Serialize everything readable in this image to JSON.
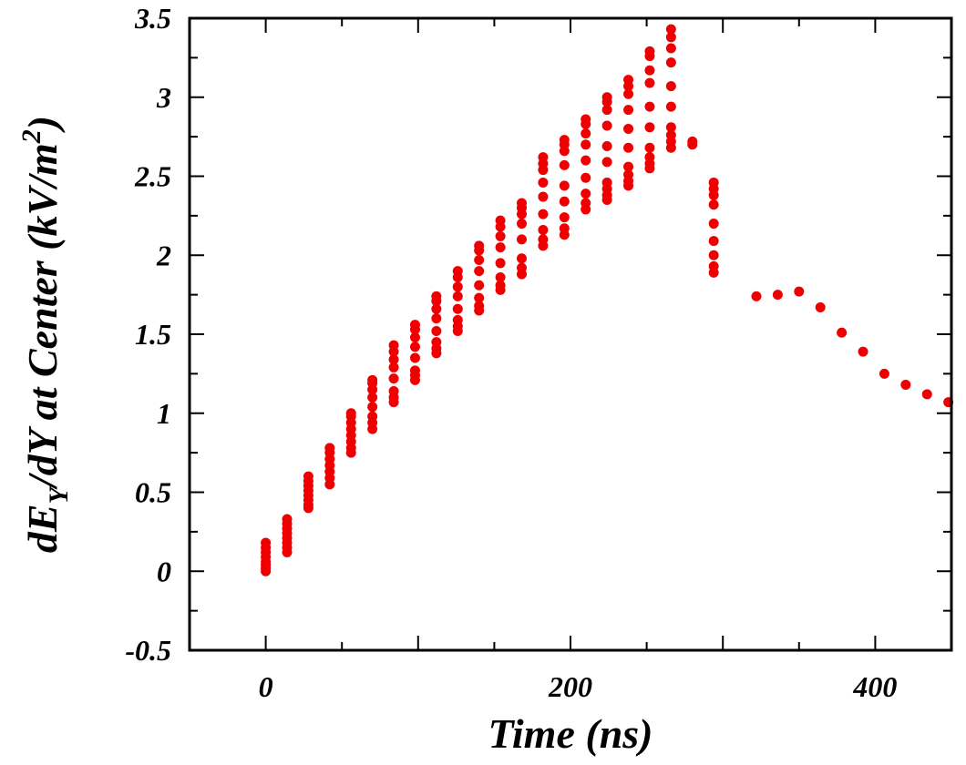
{
  "chart_data": {
    "type": "scatter",
    "title": "",
    "xlabel": "Time (ns)",
    "ylabel": {
      "prefix": "dE",
      "sub": "Y",
      "middle": "/dY at Center (kV/m",
      "sup": "2",
      "suffix": ")"
    },
    "xlim": [
      -50,
      450
    ],
    "ylim": [
      -0.5,
      3.5
    ],
    "x_ticks": [
      0,
      200,
      400
    ],
    "y_ticks": [
      -0.5,
      0,
      0.5,
      1,
      1.5,
      2,
      2.5,
      3,
      3.5
    ],
    "y_tick_labels": [
      "-0.5",
      "0",
      "0.5",
      "1",
      "1.5",
      "2",
      "2.5",
      "3",
      "3.5"
    ],
    "marker_color": "#ee0000",
    "grid": false,
    "series": [
      {
        "points": [
          [
            0,
            0.0
          ],
          [
            0,
            0.02
          ],
          [
            0,
            0.04
          ],
          [
            0,
            0.06
          ],
          [
            0,
            0.09
          ],
          [
            0,
            0.12
          ],
          [
            0,
            0.15
          ],
          [
            0,
            0.18
          ],
          [
            14,
            0.12
          ],
          [
            14,
            0.15
          ],
          [
            14,
            0.18
          ],
          [
            14,
            0.21
          ],
          [
            14,
            0.24
          ],
          [
            14,
            0.27
          ],
          [
            14,
            0.3
          ],
          [
            14,
            0.33
          ],
          [
            28,
            0.4
          ],
          [
            28,
            0.42
          ],
          [
            28,
            0.45
          ],
          [
            28,
            0.48
          ],
          [
            28,
            0.51
          ],
          [
            28,
            0.54
          ],
          [
            28,
            0.57
          ],
          [
            28,
            0.6
          ],
          [
            42,
            0.55
          ],
          [
            42,
            0.59
          ],
          [
            42,
            0.63
          ],
          [
            42,
            0.67
          ],
          [
            42,
            0.71
          ],
          [
            42,
            0.75
          ],
          [
            42,
            0.78
          ],
          [
            56,
            0.75
          ],
          [
            56,
            0.78
          ],
          [
            56,
            0.82
          ],
          [
            56,
            0.86
          ],
          [
            56,
            0.9
          ],
          [
            56,
            0.94
          ],
          [
            56,
            0.98
          ],
          [
            56,
            1.0
          ],
          [
            70,
            0.9
          ],
          [
            70,
            0.94
          ],
          [
            70,
            0.98
          ],
          [
            70,
            1.04
          ],
          [
            70,
            1.1
          ],
          [
            70,
            1.15
          ],
          [
            70,
            1.19
          ],
          [
            70,
            1.21
          ],
          [
            84,
            1.07
          ],
          [
            84,
            1.1
          ],
          [
            84,
            1.14
          ],
          [
            84,
            1.22
          ],
          [
            84,
            1.29
          ],
          [
            84,
            1.34
          ],
          [
            84,
            1.39
          ],
          [
            84,
            1.43
          ],
          [
            98,
            1.21
          ],
          [
            98,
            1.24
          ],
          [
            98,
            1.27
          ],
          [
            98,
            1.35
          ],
          [
            98,
            1.42
          ],
          [
            98,
            1.48
          ],
          [
            98,
            1.53
          ],
          [
            98,
            1.56
          ],
          [
            112,
            1.38
          ],
          [
            112,
            1.41
          ],
          [
            112,
            1.45
          ],
          [
            112,
            1.52
          ],
          [
            112,
            1.6
          ],
          [
            112,
            1.66
          ],
          [
            112,
            1.71
          ],
          [
            112,
            1.74
          ],
          [
            126,
            1.52
          ],
          [
            126,
            1.55
          ],
          [
            126,
            1.59
          ],
          [
            126,
            1.66
          ],
          [
            126,
            1.74
          ],
          [
            126,
            1.8
          ],
          [
            126,
            1.86
          ],
          [
            126,
            1.9
          ],
          [
            140,
            1.65
          ],
          [
            140,
            1.68
          ],
          [
            140,
            1.73
          ],
          [
            140,
            1.81
          ],
          [
            140,
            1.9
          ],
          [
            140,
            1.97
          ],
          [
            140,
            2.03
          ],
          [
            140,
            2.06
          ],
          [
            154,
            1.78
          ],
          [
            154,
            1.81
          ],
          [
            154,
            1.86
          ],
          [
            154,
            1.95
          ],
          [
            154,
            2.05
          ],
          [
            154,
            2.12
          ],
          [
            154,
            2.18
          ],
          [
            154,
            2.22
          ],
          [
            168,
            1.88
          ],
          [
            168,
            1.92
          ],
          [
            168,
            1.98
          ],
          [
            168,
            2.1
          ],
          [
            168,
            2.2
          ],
          [
            168,
            2.26
          ],
          [
            168,
            2.3
          ],
          [
            168,
            2.33
          ],
          [
            182,
            2.06
          ],
          [
            182,
            2.1
          ],
          [
            182,
            2.16
          ],
          [
            182,
            2.26
          ],
          [
            182,
            2.37
          ],
          [
            182,
            2.46
          ],
          [
            182,
            2.54
          ],
          [
            182,
            2.58
          ],
          [
            182,
            2.62
          ],
          [
            196,
            2.13
          ],
          [
            196,
            2.17
          ],
          [
            196,
            2.24
          ],
          [
            196,
            2.34
          ],
          [
            196,
            2.44
          ],
          [
            196,
            2.57
          ],
          [
            196,
            2.66
          ],
          [
            196,
            2.7
          ],
          [
            196,
            2.73
          ],
          [
            210,
            2.29
          ],
          [
            210,
            2.33
          ],
          [
            210,
            2.39
          ],
          [
            210,
            2.49
          ],
          [
            210,
            2.6
          ],
          [
            210,
            2.7
          ],
          [
            210,
            2.77
          ],
          [
            210,
            2.83
          ],
          [
            210,
            2.86
          ],
          [
            224,
            2.35
          ],
          [
            224,
            2.38
          ],
          [
            224,
            2.42
          ],
          [
            224,
            2.46
          ],
          [
            224,
            2.59
          ],
          [
            224,
            2.69
          ],
          [
            224,
            2.82
          ],
          [
            224,
            2.92
          ],
          [
            224,
            2.97
          ],
          [
            224,
            3.0
          ],
          [
            238,
            2.44
          ],
          [
            238,
            2.47
          ],
          [
            238,
            2.51
          ],
          [
            238,
            2.56
          ],
          [
            238,
            2.68
          ],
          [
            238,
            2.8
          ],
          [
            238,
            2.92
          ],
          [
            238,
            3.02
          ],
          [
            238,
            3.07
          ],
          [
            238,
            3.11
          ],
          [
            252,
            2.55
          ],
          [
            252,
            2.58
          ],
          [
            252,
            2.62
          ],
          [
            252,
            2.68
          ],
          [
            252,
            2.81
          ],
          [
            252,
            2.94
          ],
          [
            252,
            3.09
          ],
          [
            252,
            3.17
          ],
          [
            252,
            3.26
          ],
          [
            252,
            3.29
          ],
          [
            266,
            2.68
          ],
          [
            266,
            2.72
          ],
          [
            266,
            2.76
          ],
          [
            266,
            2.81
          ],
          [
            266,
            2.94
          ],
          [
            266,
            3.07
          ],
          [
            266,
            3.22
          ],
          [
            266,
            3.31
          ],
          [
            266,
            3.38
          ],
          [
            266,
            3.43
          ],
          [
            280,
            2.7
          ],
          [
            280,
            2.72
          ],
          [
            294,
            1.89
          ],
          [
            294,
            1.93
          ],
          [
            294,
            2.0
          ],
          [
            294,
            2.09
          ],
          [
            294,
            2.2
          ],
          [
            294,
            2.32
          ],
          [
            294,
            2.38
          ],
          [
            294,
            2.42
          ],
          [
            294,
            2.46
          ],
          [
            322,
            1.74
          ],
          [
            336,
            1.75
          ],
          [
            350,
            1.77
          ],
          [
            364,
            1.67
          ],
          [
            378,
            1.51
          ],
          [
            392,
            1.39
          ],
          [
            406,
            1.25
          ],
          [
            420,
            1.18
          ],
          [
            434,
            1.12
          ],
          [
            448,
            1.07
          ]
        ]
      }
    ]
  }
}
